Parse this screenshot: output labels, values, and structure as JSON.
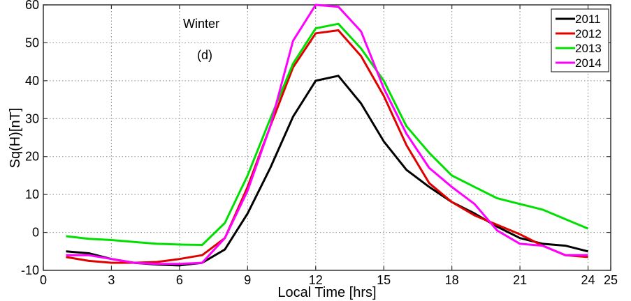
{
  "chart_data": {
    "type": "line",
    "title": "",
    "xlabel": "Local Time [hrs]",
    "ylabel": "Sq(H)[nT]",
    "xlim": [
      0,
      25
    ],
    "ylim": [
      -10,
      60
    ],
    "xticks": [
      0,
      3,
      6,
      9,
      12,
      15,
      18,
      21,
      24,
      25
    ],
    "xtick_labels": [
      "0",
      "3",
      "6",
      "9",
      "12",
      "15",
      "18",
      "21",
      "24",
      "25"
    ],
    "yticks": [
      -10,
      0,
      10,
      20,
      30,
      40,
      50,
      60
    ],
    "ytick_labels": [
      "-10",
      "0",
      "10",
      "20",
      "30",
      "40",
      "50",
      "60"
    ],
    "grid": true,
    "legend_position": "top-right",
    "annotations": [
      "Winter",
      "(d)"
    ],
    "x": [
      1,
      2,
      3,
      4,
      5,
      6,
      7,
      8,
      9,
      10,
      11,
      12,
      13,
      14,
      15,
      16,
      17,
      18,
      19,
      20,
      21,
      22,
      23,
      24
    ],
    "series": [
      {
        "name": "2011",
        "color": "#000000",
        "values": [
          -5,
          -5.5,
          -7,
          -8,
          -8.5,
          -8.7,
          -8,
          -4.5,
          5,
          17,
          30.5,
          40,
          41.3,
          34,
          24,
          16.5,
          12,
          8,
          5,
          1.5,
          -1.5,
          -3,
          -3.5,
          -5
        ]
      },
      {
        "name": "2012",
        "color": "#e00000",
        "values": [
          -6.5,
          -7.5,
          -8,
          -8,
          -7.8,
          -7,
          -6,
          -1.5,
          12,
          28,
          43.5,
          52.5,
          53.3,
          46.5,
          36,
          23,
          13,
          8,
          4.5,
          2,
          -0.5,
          -3.5,
          -6,
          -6.5
        ]
      },
      {
        "name": "2013",
        "color": "#00e000",
        "values": [
          -1,
          -1.7,
          -2,
          -2.5,
          -3,
          -3.2,
          -3.3,
          2.5,
          15,
          30,
          44.5,
          53.8,
          55,
          48.5,
          40,
          28,
          21,
          15,
          12,
          9,
          7.5,
          6,
          3.5,
          1
        ]
      },
      {
        "name": "2014",
        "color": "#ff00ff",
        "values": [
          -6,
          -6,
          -7,
          -8,
          -8.3,
          -8.3,
          -8,
          -1.5,
          11,
          28,
          50.5,
          60,
          59.5,
          53,
          38,
          26,
          17,
          12,
          7.5,
          0.5,
          -3,
          -3.5,
          -6,
          -6
        ]
      }
    ]
  }
}
